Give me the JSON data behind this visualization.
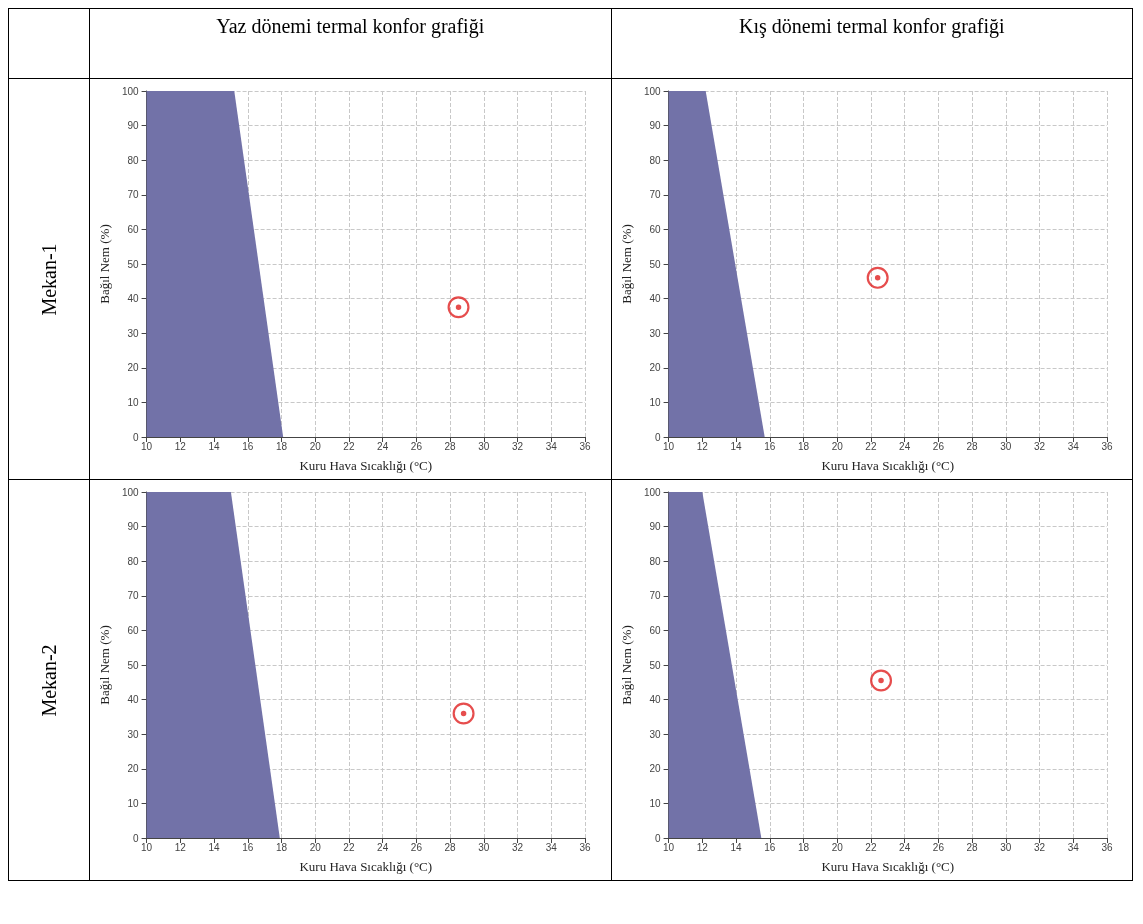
{
  "chart_data": [
    {
      "type": "area",
      "title": "Yaz dönemi termal konfor grafiği",
      "annotations": [
        "Mekan-1"
      ],
      "xlabel": "Kuru Hava Sıcaklığı (°C)",
      "ylabel": "Bağıl Nem (%)",
      "xlim": [
        10,
        36
      ],
      "xticks": [
        10,
        12,
        14,
        16,
        18,
        20,
        22,
        24,
        26,
        28,
        30,
        32,
        34,
        36
      ],
      "ylim": [
        0,
        100
      ],
      "yticks": [
        0,
        10,
        20,
        30,
        40,
        50,
        60,
        70,
        80,
        90,
        100
      ],
      "grid": true,
      "series": [
        {
          "color": "#7272a8",
          "x": [
            10,
            15.2,
            18.1
          ],
          "values": [
            100,
            100,
            0
          ]
        },
        {
          "type": "scatter",
          "marker": "circle",
          "color": "#e02020",
          "x": [
            28.5
          ],
          "values": [
            37.5
          ]
        }
      ]
    },
    {
      "type": "area",
      "title": "Kış dönemi termal konfor grafiği",
      "xlabel": "Kuru Hava Sıcaklığı (°C)",
      "ylabel": "Bağıl Nem (%)",
      "xlim": [
        10,
        36
      ],
      "xticks": [
        10,
        12,
        14,
        16,
        18,
        20,
        22,
        24,
        26,
        28,
        30,
        32,
        34,
        36
      ],
      "ylim": [
        0,
        100
      ],
      "yticks": [
        0,
        10,
        20,
        30,
        40,
        50,
        60,
        70,
        80,
        90,
        100
      ],
      "grid": true,
      "series": [
        {
          "color": "#7272a8",
          "x": [
            10,
            12.2,
            15.7
          ],
          "values": [
            100,
            100,
            0
          ]
        },
        {
          "type": "scatter",
          "marker": "circle",
          "color": "#e02020",
          "x": [
            22.4
          ],
          "values": [
            46
          ]
        }
      ]
    },
    {
      "type": "area",
      "annotations": [
        "Mekan-2"
      ],
      "xlabel": "Kuru Hava Sıcaklığı (°C)",
      "ylabel": "Bağıl Nem (%)",
      "xlim": [
        10,
        36
      ],
      "xticks": [
        10,
        12,
        14,
        16,
        18,
        20,
        22,
        24,
        26,
        28,
        30,
        32,
        34,
        36
      ],
      "ylim": [
        0,
        100
      ],
      "yticks": [
        0,
        10,
        20,
        30,
        40,
        50,
        60,
        70,
        80,
        90,
        100
      ],
      "grid": true,
      "series": [
        {
          "color": "#7272a8",
          "x": [
            10,
            15,
            17.9
          ],
          "values": [
            100,
            100,
            0
          ]
        },
        {
          "type": "scatter",
          "marker": "circle",
          "color": "#e02020",
          "x": [
            28.8
          ],
          "values": [
            36
          ]
        }
      ]
    },
    {
      "type": "area",
      "xlabel": "Kuru Hava Sıcaklığı (°C)",
      "ylabel": "Bağıl Nem (%)",
      "xlim": [
        10,
        36
      ],
      "xticks": [
        10,
        12,
        14,
        16,
        18,
        20,
        22,
        24,
        26,
        28,
        30,
        32,
        34,
        36
      ],
      "ylim": [
        0,
        100
      ],
      "yticks": [
        0,
        10,
        20,
        30,
        40,
        50,
        60,
        70,
        80,
        90,
        100
      ],
      "grid": true,
      "series": [
        {
          "color": "#7272a8",
          "x": [
            10,
            12,
            15.5
          ],
          "values": [
            100,
            100,
            0
          ]
        },
        {
          "type": "scatter",
          "marker": "circle",
          "color": "#e02020",
          "x": [
            22.6
          ],
          "values": [
            45.5
          ]
        }
      ]
    }
  ]
}
